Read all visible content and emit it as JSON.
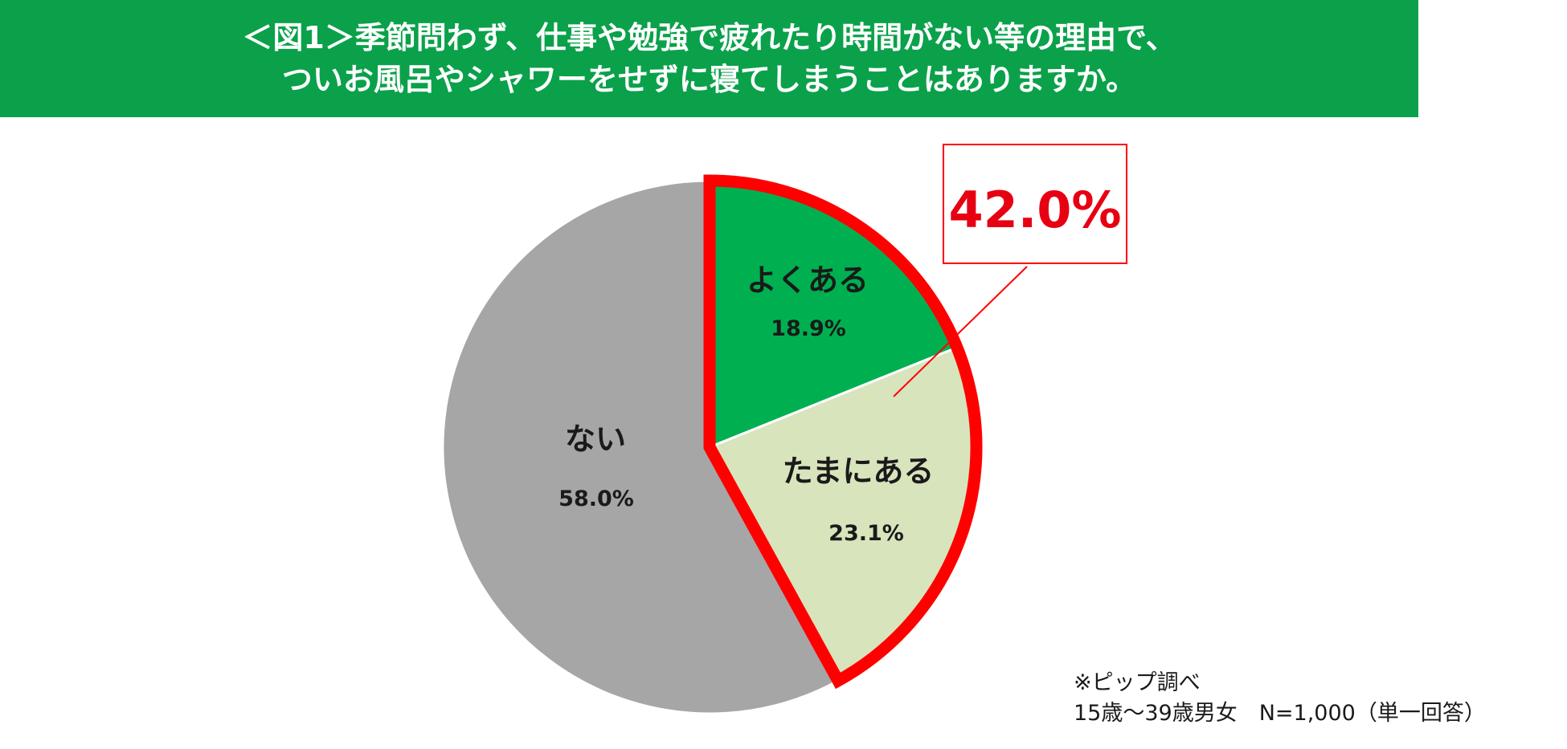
{
  "title_lines": [
    "＜図1＞季節問わず、仕事や勉強で疲れたり時間がない等の理由で、",
    "ついお風呂やシャワーをせずに寝てしまうことはありますか。"
  ],
  "chart_data": {
    "type": "pie",
    "title": "＜図1＞季節問わず、仕事や勉強で疲れたり時間がない等の理由で、ついお風呂やシャワーをせずに寝てしまうことはありますか。",
    "slices": [
      {
        "label": "よくある",
        "value": 18.9,
        "value_label": "18.9%",
        "color": "#00b050"
      },
      {
        "label": "たまにある",
        "value": 23.1,
        "value_label": "23.1%",
        "color": "#d8e4bc"
      },
      {
        "label": "ない",
        "value": 58.0,
        "value_label": "58.0%",
        "color": "#a6a6a6"
      }
    ],
    "start_angle_deg": 0,
    "direction": "clockwise",
    "highlight": {
      "slices": [
        "よくある",
        "たまにある"
      ],
      "total_label": "42.0%",
      "color": "#ff0000"
    }
  },
  "source": {
    "line1": "※ピップ調べ",
    "line2": "15歳～39歳男女　N=1,000（単一回答）"
  }
}
